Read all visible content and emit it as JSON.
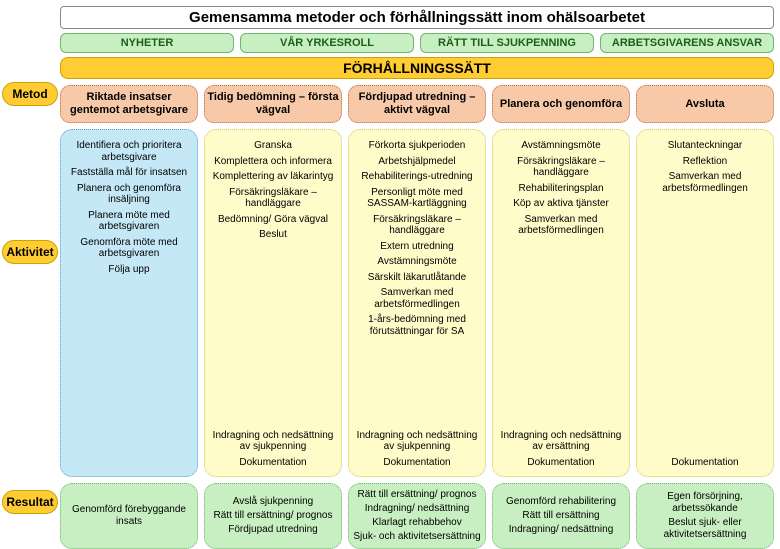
{
  "title": "Gemensamma metoder och förhållningssätt inom ohälsoarbetet",
  "tabs": [
    "NYHETER",
    "VÅR YRKESROLL",
    "RÄTT TILL SJUKPENNING",
    "ARBETSGIVARENS ANSVAR"
  ],
  "approach_label": "FÖRHÅLLNINGSSÄTT",
  "side_labels": {
    "method": "Metod",
    "activity": "Aktivitet",
    "result": "Resultat"
  },
  "colors": {
    "tab_bg": "#c8efc1",
    "tab_border": "#6fb76f",
    "approach_bg": "#ffcc33",
    "approach_border": "#c9a400",
    "method_bg": "#f7c9a8",
    "method_border": "#bb6f3c",
    "activity_first_bg": "#c5e8f7",
    "activity_yellow_bg": "#fffcc9",
    "result_bg": "#c8efc1"
  },
  "columns": [
    {
      "method": "Riktade insatser gentemot arbetsgivare",
      "activity_bg": "first",
      "activities_top": [
        "Identifiera och prioritera arbetsgivare",
        "Fastställa mål för insatsen",
        "Planera och genomföra insäljning",
        "Planera möte med arbetsgivaren",
        "Genomföra möte med arbetsgivaren",
        "Följa upp"
      ],
      "activities_bottom": [],
      "results": [
        "Genomförd förebyggande insats"
      ]
    },
    {
      "method": "Tidig bedömning – första vägval",
      "activity_bg": "yellow",
      "activities_top": [
        "Granska",
        "Komplettera och informera",
        "Komplettering av läkarintyg",
        "Försäkringsläkare – handläggare",
        "Bedömning/ Göra vägval",
        "Beslut"
      ],
      "activities_bottom": [
        "Indragning och nedsättning av sjukpenning",
        "Dokumentation"
      ],
      "results": [
        "Avslå sjukpenning",
        "Rätt till ersättning/ prognos",
        "Fördjupad utredning"
      ]
    },
    {
      "method": "Fördjupad utredning – aktivt vägval",
      "activity_bg": "yellow",
      "activities_top": [
        "Förkorta sjukperioden",
        "Arbetshjälpmedel",
        "Rehabiliterings-utredning",
        "Personligt möte med SASSAM-kartläggning",
        "Försäkringsläkare – handläggare",
        "Extern utredning",
        "Avstämningsmöte",
        "Särskilt läkarutlåtande",
        "Samverkan med arbetsförmedlingen",
        "1-års-bedömning med förutsättningar för SA"
      ],
      "activities_bottom": [
        "Indragning och nedsättning av sjukpenning",
        "Dokumentation"
      ],
      "results": [
        "Rätt till ersättning/ prognos",
        "Indragning/ nedsättning",
        "Klarlagt rehabbehov",
        "Sjuk- och aktivitetsersättning"
      ]
    },
    {
      "method": "Planera och genomföra",
      "activity_bg": "yellow",
      "activities_top": [
        "Avstämningsmöte",
        "Försäkringsläkare – handläggare",
        "Rehabiliteringsplan",
        "Köp av aktiva tjänster",
        "Samverkan med arbetsförmedlingen"
      ],
      "activities_bottom": [
        "Indragning och nedsättning av ersättning",
        "Dokumentation"
      ],
      "results": [
        "Genomförd rehabilitering",
        "Rätt till ersättning",
        "Indragning/ nedsättning"
      ]
    },
    {
      "method": "Avsluta",
      "activity_bg": "yellow",
      "activities_top": [
        "Slutanteckningar",
        "Reflektion",
        "Samverkan med arbetsförmedlingen"
      ],
      "activities_bottom": [
        "Dokumentation"
      ],
      "results": [
        "Egen försörjning, arbetssökande",
        "Beslut sjuk- eller aktivitetsersättning"
      ]
    }
  ]
}
